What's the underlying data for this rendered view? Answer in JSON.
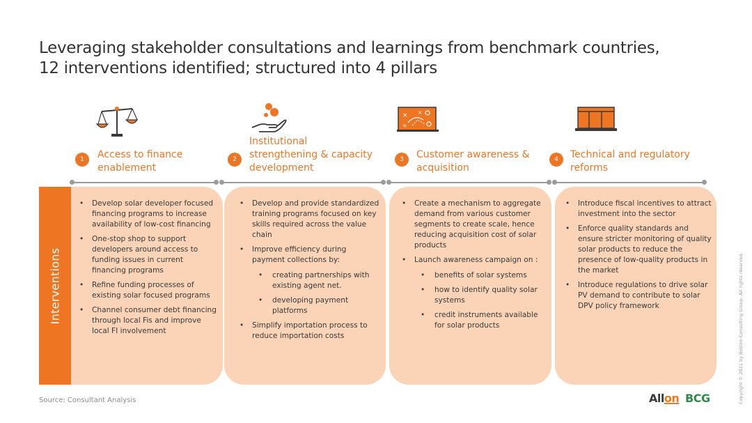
{
  "title": {
    "line1": "Leveraging stakeholder consultations and learnings from benchmark countries,",
    "line2": "12 interventions identified; structured into 4 pillars"
  },
  "side_label": "Interventions",
  "accent_color": "#ee7623",
  "card_color": "#fbd3b7",
  "pillars": [
    {
      "number": "1",
      "icon": "scales-icon",
      "label_lines": [
        "Access to finance",
        "enablement"
      ],
      "bullets": [
        {
          "text": "Develop solar developer focused financing programs to increase availability of low-cost financing"
        },
        {
          "text": "One-stop shop to support developers around access to funding issues in current financing programs"
        },
        {
          "text": "Refine funding processes of existing solar focused programs"
        },
        {
          "text": "Channel consumer debt financing through local Fis and improve local FI involvement"
        }
      ]
    },
    {
      "number": "2",
      "icon": "hand-growth-icon",
      "label_lines": [
        "Institutional",
        "strengthening & capacity",
        "development"
      ],
      "bullets": [
        {
          "text": "Develop and provide standardized training programs focused on key skills required across the value chain"
        },
        {
          "text": "Improve efficiency during payment collections by:",
          "sub": [
            "creating partnerships with existing agent net.",
            "developing payment platforms"
          ]
        },
        {
          "text": "Simplify importation process to reduce importation costs"
        }
      ]
    },
    {
      "number": "3",
      "icon": "strategy-board-icon",
      "label_lines": [
        "Customer awareness &",
        "acquisition"
      ],
      "bullets": [
        {
          "text": "Create a mechanism to aggregate demand from various customer segments to create scale, hence reducing acquisition cost of solar products"
        },
        {
          "text": "Launch awareness campaign on :",
          "sub": [
            "benefits of solar systems",
            "how to identify quality solar systems",
            "credit instruments available for solar products"
          ]
        }
      ]
    },
    {
      "number": "4",
      "icon": "building-icon",
      "label_lines": [
        "Technical and regulatory",
        "reforms"
      ],
      "bullets": [
        {
          "text": "Introduce fiscal incentives to attract investment into the sector"
        },
        {
          "text": "Enforce quality standards and ensure stricter monitoring of quality solar products to reduce the presence of low-quality products in the market"
        },
        {
          "text": "Introduce regulations to drive solar PV demand to contribute to solar DPV policy framework"
        }
      ]
    }
  ],
  "source": "Source: Consultant Analysis",
  "copyright": "Copyright © 2021 by Boston Consulting Group. All rights reserved.",
  "logos": {
    "allon_a": "All",
    "allon_b": "on",
    "bcg": "BCG"
  }
}
